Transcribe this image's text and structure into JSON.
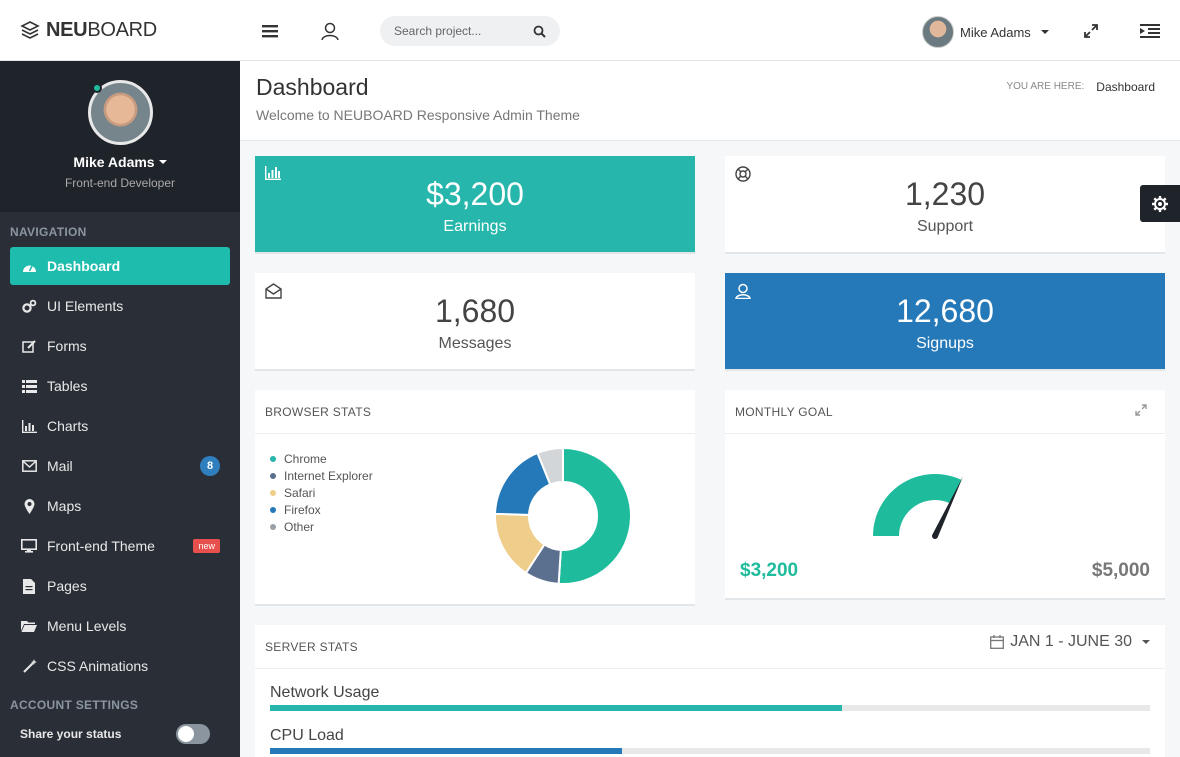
{
  "brand": {
    "bold": "NEU",
    "light": "BOARD"
  },
  "search": {
    "placeholder": "Search project..."
  },
  "top_user": {
    "name": "Mike Adams"
  },
  "profile": {
    "name": "Mike Adams",
    "role": "Front-end Developer"
  },
  "nav": {
    "heading": "NAVIGATION",
    "items": [
      {
        "label": "Dashboard",
        "icon": "dashboard-icon"
      },
      {
        "label": "UI Elements",
        "icon": "cogs-icon"
      },
      {
        "label": "Forms",
        "icon": "edit-icon"
      },
      {
        "label": "Tables",
        "icon": "list-icon"
      },
      {
        "label": "Charts",
        "icon": "bar-chart-icon"
      },
      {
        "label": "Mail",
        "icon": "envelope-icon",
        "badge": "8"
      },
      {
        "label": "Maps",
        "icon": "map-marker-icon"
      },
      {
        "label": "Front-end Theme",
        "icon": "desktop-icon",
        "tag": "new"
      },
      {
        "label": "Pages",
        "icon": "file-icon"
      },
      {
        "label": "Menu Levels",
        "icon": "folder-icon"
      },
      {
        "label": "CSS Animations",
        "icon": "magic-wand-icon"
      }
    ],
    "account_heading": "ACCOUNT SETTINGS",
    "share_status": "Share your status"
  },
  "page": {
    "title": "Dashboard",
    "subtitle": "Welcome to NEUBOARD Responsive Admin Theme",
    "crumb_prefix": "YOU ARE HERE:",
    "crumb_current": "Dashboard"
  },
  "stats": [
    {
      "value": "$3,200",
      "label": "Earnings",
      "icon": "bar-chart-icon"
    },
    {
      "value": "1,230",
      "label": "Support",
      "icon": "life-ring-icon"
    },
    {
      "value": "1,680",
      "label": "Messages",
      "icon": "envelope-open-icon"
    },
    {
      "value": "12,680",
      "label": "Signups",
      "icon": "user-icon"
    }
  ],
  "browser_stats": {
    "title": "BROWSER STATS",
    "legend": [
      "Chrome",
      "Internet Explorer",
      "Safari",
      "Firefox",
      "Other"
    ],
    "chart_data": {
      "type": "pie",
      "categories": [
        "Chrome",
        "Internet Explorer",
        "Safari",
        "Firefox",
        "Other"
      ],
      "values": [
        50,
        8,
        16,
        18,
        6
      ],
      "colors": [
        "#1ebc9c",
        "#5b6f8f",
        "#efcd8b",
        "#2579b8",
        "#d3d6d8"
      ]
    }
  },
  "monthly_goal": {
    "title": "MONTHLY GOAL",
    "current": "$3,200",
    "target": "$5,000",
    "progress": 0.64,
    "color": "#1ebc9c"
  },
  "server_stats": {
    "title": "SERVER STATS",
    "range": "JAN 1 - JUNE 30",
    "bars": [
      {
        "label": "Network Usage",
        "value": 65,
        "color": "#26b6ab"
      },
      {
        "label": "CPU Load",
        "value": 40,
        "color": "#2579b8"
      }
    ]
  },
  "colors": {
    "accent": "#1ebcac",
    "blue": "#2579b8",
    "sidebar": "#2a2f37"
  }
}
